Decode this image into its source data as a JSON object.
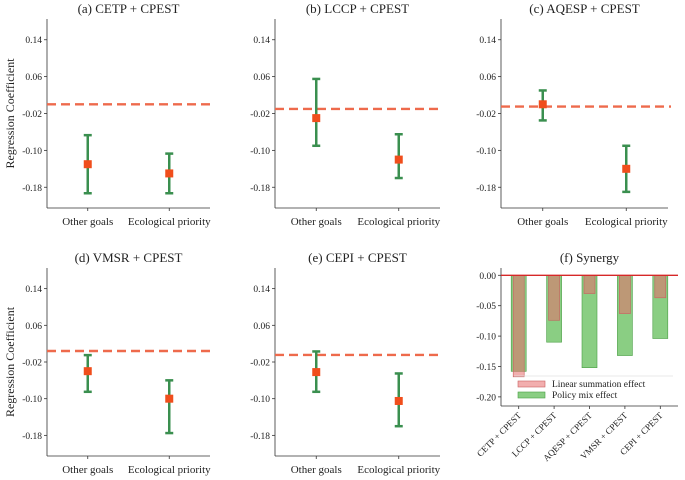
{
  "figure_ylabel": "Regression Coefficient",
  "chart_data": [
    {
      "type": "errorbar",
      "title": "(a) CETP + CPEST",
      "categories": [
        "Other goals",
        "Ecological priority"
      ],
      "points": [
        {
          "value": -0.13,
          "lower": -0.193,
          "upper": -0.067
        },
        {
          "value": -0.15,
          "lower": -0.193,
          "upper": -0.107
        }
      ],
      "reference_line": 0.0,
      "yticks": [
        "0.14",
        "0.06",
        "-0.02",
        "-0.10",
        "-0.18"
      ],
      "tick_values": [
        0.14,
        0.06,
        -0.02,
        -0.1,
        -0.18
      ],
      "ylim": [
        -0.225,
        0.185
      ],
      "ylabel": "Regression Coefficient"
    },
    {
      "type": "errorbar",
      "title": "(b) LCCP + CPEST",
      "categories": [
        "Other goals",
        "Ecological priority"
      ],
      "points": [
        {
          "value": -0.03,
          "lower": -0.09,
          "upper": 0.055
        },
        {
          "value": -0.12,
          "lower": -0.16,
          "upper": -0.065
        }
      ],
      "reference_line": -0.01,
      "yticks": [
        "0.14",
        "0.06",
        "-0.02",
        "-0.10",
        "-0.18"
      ],
      "tick_values": [
        0.14,
        0.06,
        -0.02,
        -0.1,
        -0.18
      ],
      "ylim": [
        -0.225,
        0.185
      ],
      "ylabel": ""
    },
    {
      "type": "errorbar",
      "title": "(c) AQESP + CPEST",
      "categories": [
        "Other goals",
        "Ecological priority"
      ],
      "points": [
        {
          "value": 0.0,
          "lower": -0.035,
          "upper": 0.03
        },
        {
          "value": -0.14,
          "lower": -0.19,
          "upper": -0.09
        }
      ],
      "reference_line": -0.005,
      "yticks": [
        "0.14",
        "0.06",
        "-0.02",
        "-0.10",
        "-0.18"
      ],
      "tick_values": [
        0.14,
        0.06,
        -0.02,
        -0.1,
        -0.18
      ],
      "ylim": [
        -0.225,
        0.185
      ],
      "ylabel": ""
    },
    {
      "type": "errorbar",
      "title": "(d) VMSR + CPEST",
      "categories": [
        "Other goals",
        "Ecological priority"
      ],
      "points": [
        {
          "value": -0.04,
          "lower": -0.085,
          "upper": -0.005
        },
        {
          "value": -0.1,
          "lower": -0.175,
          "upper": -0.06
        }
      ],
      "reference_line": 0.004,
      "yticks": [
        "0.14",
        "0.06",
        "-0.02",
        "-0.10",
        "-0.18"
      ],
      "tick_values": [
        0.14,
        0.06,
        -0.02,
        -0.1,
        -0.18
      ],
      "ylim": [
        -0.225,
        0.185
      ],
      "ylabel": "Regression Coefficient"
    },
    {
      "type": "errorbar",
      "title": "(e) CEPI + CPEST",
      "categories": [
        "Other goals",
        "Ecological priority"
      ],
      "points": [
        {
          "value": -0.042,
          "lower": -0.085,
          "upper": 0.003
        },
        {
          "value": -0.105,
          "lower": -0.16,
          "upper": -0.045
        }
      ],
      "reference_line": -0.0045,
      "yticks": [
        "0.14",
        "0.06",
        "-0.02",
        "-0.10",
        "-0.18"
      ],
      "tick_values": [
        0.14,
        0.06,
        -0.02,
        -0.1,
        -0.18
      ],
      "ylim": [
        -0.225,
        0.185
      ],
      "ylabel": ""
    },
    {
      "type": "bar",
      "title": "(f) Synergy",
      "categories": [
        "CETP + CPEST",
        "LCCP + CPEST",
        "AQESP + CPEST",
        "VMSR + CPEST",
        "CEPI + CPEST"
      ],
      "series": [
        {
          "name": "Linear summation effect",
          "values": [
            -0.167,
            -0.074,
            -0.03,
            -0.063,
            -0.037
          ]
        },
        {
          "name": "Policy mix effect",
          "values": [
            -0.158,
            -0.11,
            -0.152,
            -0.132,
            -0.104
          ]
        }
      ],
      "reference_line": 0.0,
      "yticks": [
        "0.00",
        "-0.05",
        "-0.10",
        "-0.15",
        "-0.20"
      ],
      "tick_values": [
        0.0,
        -0.05,
        -0.1,
        -0.15,
        -0.2
      ],
      "ylim": [
        -0.215,
        0.012
      ],
      "legend_position": "bottom"
    }
  ]
}
